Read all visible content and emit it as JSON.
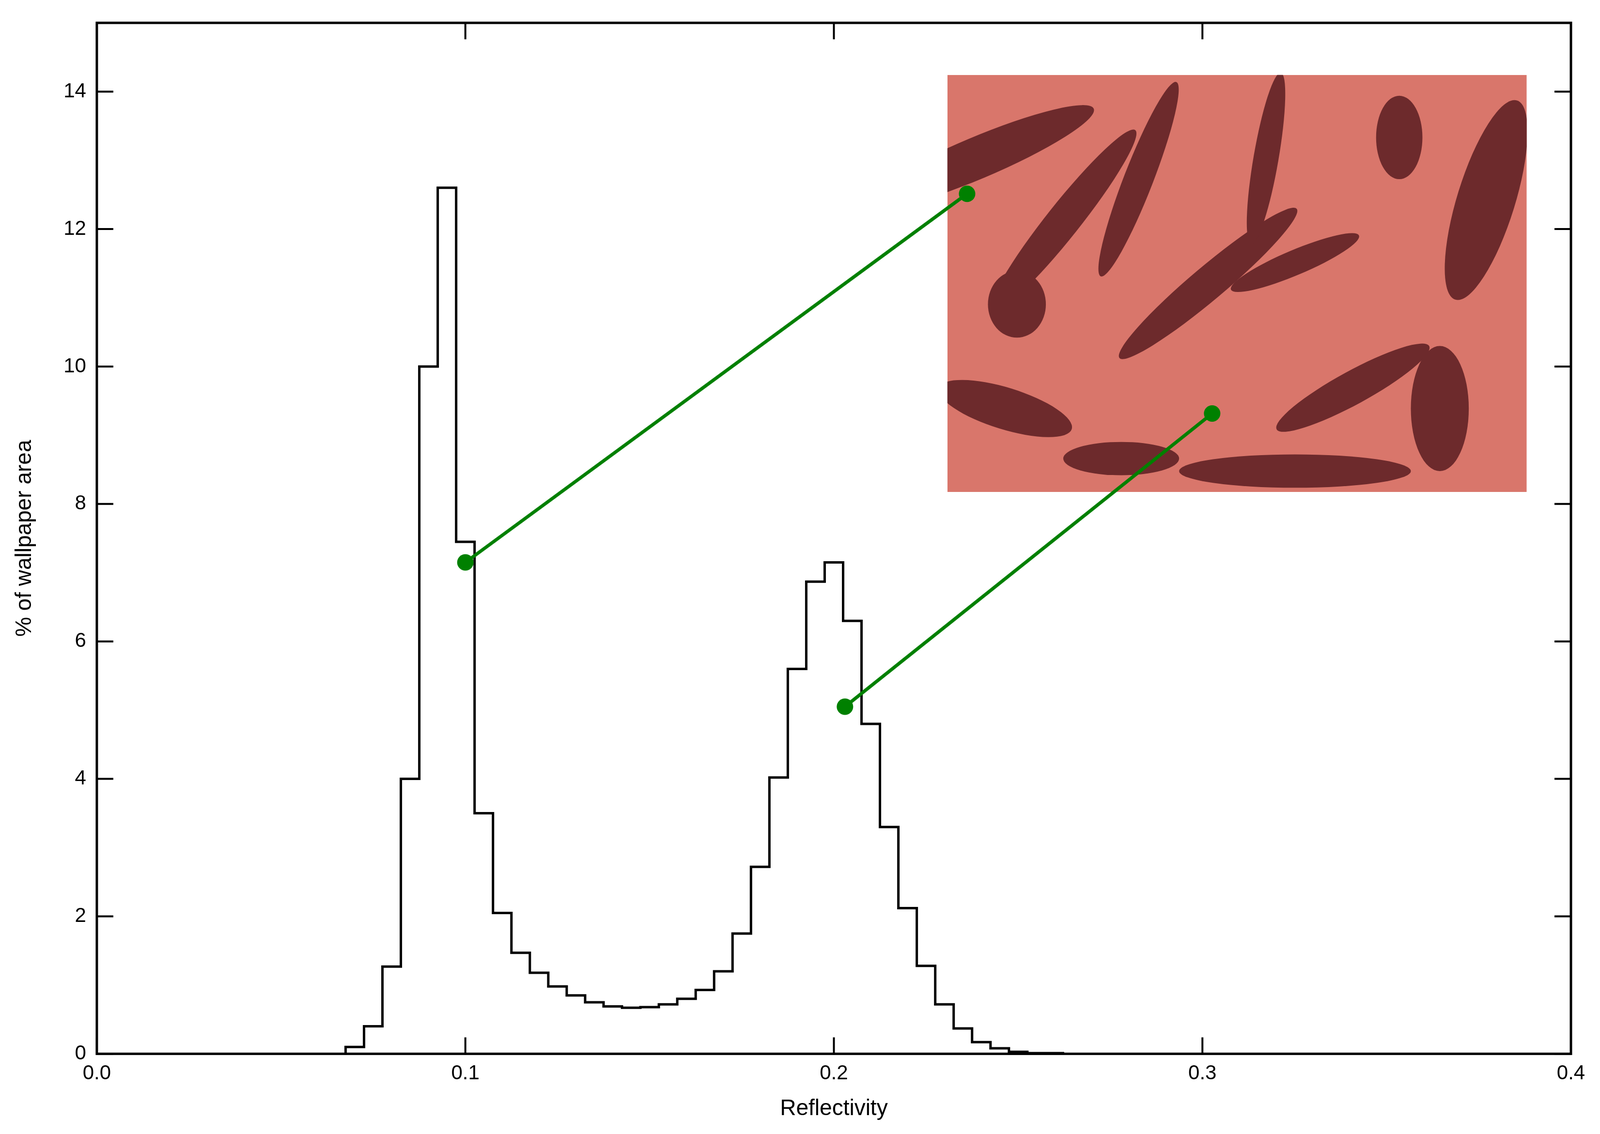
{
  "chart_data": {
    "type": "histogram",
    "x_label": "Reflectivity",
    "y_label": "% of wallpaper area",
    "bins": [
      0.0675,
      0.0725,
      0.0775,
      0.0825,
      0.0875,
      0.0925,
      0.0975,
      0.1025,
      0.1075,
      0.1125,
      0.1175,
      0.1225,
      0.1275,
      0.1325,
      0.1375,
      0.1425,
      0.1475,
      0.1525,
      0.1575,
      0.1625,
      0.1675,
      0.1725,
      0.1775,
      0.1825,
      0.1875,
      0.1925,
      0.1975,
      0.2025,
      0.2075,
      0.2125,
      0.2175,
      0.2225,
      0.2275,
      0.2325,
      0.2375,
      0.2425,
      0.2475,
      0.2525,
      0.2575,
      0.2625
    ],
    "values": [
      0,
      0.1,
      0.4,
      1.27,
      4.0,
      10.0,
      12.6,
      7.45,
      3.5,
      2.05,
      1.47,
      1.18,
      0.98,
      0.85,
      0.75,
      0.69,
      0.67,
      0.68,
      0.72,
      0.8,
      0.93,
      1.2,
      1.75,
      2.72,
      4.02,
      5.6,
      6.87,
      7.15,
      6.3,
      4.8,
      3.3,
      2.12,
      1.28,
      0.72,
      0.37,
      0.17,
      0.08,
      0.03,
      0.01
    ],
    "color": "#000000",
    "xlim": [
      0,
      0.4
    ],
    "xticks": [
      {
        "value": 0,
        "label": "0.0"
      },
      0.1,
      0.2,
      0.3,
      0.4
    ],
    "ylim": [
      0,
      15
    ],
    "yticks": [
      0,
      2,
      4,
      6,
      8,
      10,
      12,
      14
    ],
    "grid": false,
    "annotations": [
      {
        "x": 0.1,
        "y": 7.15,
        "color": "#008000"
      },
      {
        "x": 0.203,
        "y": 5.05,
        "color": "#008000"
      }
    ]
  }
}
